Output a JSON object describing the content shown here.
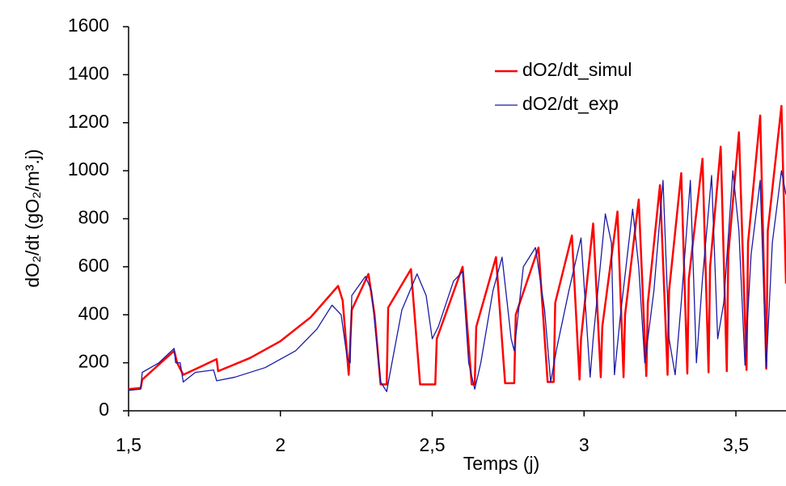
{
  "chart_data": {
    "type": "line",
    "x_label": "Temps (j)",
    "y_label": "dO₂/dt (gO₂/m³.j)",
    "xlim": [
      1.5,
      3.665
    ],
    "xticks": [
      {
        "value": 1.5,
        "label": "1,5"
      },
      2,
      {
        "value": 2.5,
        "label": "2,5"
      },
      3,
      {
        "value": 3.5,
        "label": "3,5"
      }
    ],
    "ylim": [
      0,
      1600
    ],
    "yticks": [
      0,
      200,
      400,
      600,
      800,
      1000,
      1200,
      1400,
      1600
    ],
    "grid": false,
    "legend": "upper right",
    "series": [
      {
        "name": "dO2/dt_simul",
        "color": "#ff0000",
        "x": [
          1.5,
          1.54,
          1.545,
          1.65,
          1.66,
          1.68,
          1.79,
          1.795,
          1.9,
          2.0,
          2.1,
          2.19,
          2.205,
          2.225,
          2.235,
          2.29,
          2.31,
          2.33,
          2.35,
          2.355,
          2.43,
          2.46,
          2.51,
          2.515,
          2.6,
          2.63,
          2.64,
          2.645,
          2.71,
          2.74,
          2.77,
          2.775,
          2.85,
          2.88,
          2.9,
          2.905,
          2.96,
          2.985,
          2.99,
          3.03,
          3.055,
          3.06,
          3.11,
          3.13,
          3.135,
          3.18,
          3.205,
          3.21,
          3.25,
          3.275,
          3.28,
          3.32,
          3.34,
          3.345,
          3.39,
          3.41,
          3.415,
          3.45,
          3.47,
          3.475,
          3.51,
          3.535,
          3.54,
          3.58,
          3.6,
          3.605,
          3.65,
          3.665
        ],
        "values": [
          90,
          95,
          130,
          250,
          200,
          150,
          215,
          165,
          220,
          290,
          390,
          520,
          460,
          150,
          420,
          570,
          400,
          110,
          110,
          430,
          590,
          110,
          110,
          300,
          600,
          110,
          110,
          350,
          640,
          115,
          115,
          400,
          680,
          120,
          120,
          450,
          730,
          130,
          300,
          780,
          140,
          350,
          830,
          140,
          400,
          880,
          145,
          450,
          940,
          150,
          500,
          990,
          155,
          550,
          1050,
          160,
          600,
          1100,
          165,
          650,
          1160,
          170,
          700,
          1230,
          175,
          750,
          1270,
          530
        ]
      },
      {
        "name": "dO2/dt_exp",
        "color": "#1a1aa6",
        "x": [
          1.5,
          1.54,
          1.545,
          1.6,
          1.65,
          1.655,
          1.67,
          1.68,
          1.72,
          1.78,
          1.79,
          1.85,
          1.95,
          2.05,
          2.12,
          2.17,
          2.2,
          2.22,
          2.23,
          2.235,
          2.28,
          2.3,
          2.33,
          2.35,
          2.36,
          2.4,
          2.45,
          2.48,
          2.5,
          2.52,
          2.57,
          2.6,
          2.62,
          2.64,
          2.66,
          2.7,
          2.73,
          2.76,
          2.77,
          2.8,
          2.84,
          2.87,
          2.89,
          2.91,
          2.95,
          2.99,
          3.02,
          3.03,
          3.07,
          3.09,
          3.1,
          3.12,
          3.16,
          3.18,
          3.2,
          3.23,
          3.26,
          3.28,
          3.3,
          3.32,
          3.35,
          3.37,
          3.39,
          3.42,
          3.44,
          3.46,
          3.49,
          3.51,
          3.53,
          3.55,
          3.58,
          3.6,
          3.62,
          3.65,
          3.665
        ],
        "values": [
          85,
          90,
          160,
          200,
          260,
          200,
          200,
          120,
          160,
          170,
          125,
          140,
          180,
          250,
          340,
          440,
          400,
          220,
          200,
          480,
          560,
          500,
          120,
          80,
          150,
          420,
          570,
          480,
          300,
          350,
          540,
          580,
          200,
          90,
          200,
          500,
          640,
          300,
          250,
          600,
          680,
          420,
          120,
          260,
          500,
          720,
          140,
          300,
          820,
          700,
          150,
          400,
          840,
          600,
          200,
          500,
          960,
          300,
          150,
          450,
          960,
          200,
          550,
          980,
          300,
          450,
          1000,
          750,
          190,
          650,
          960,
          180,
          700,
          1000,
          900
        ]
      }
    ]
  }
}
